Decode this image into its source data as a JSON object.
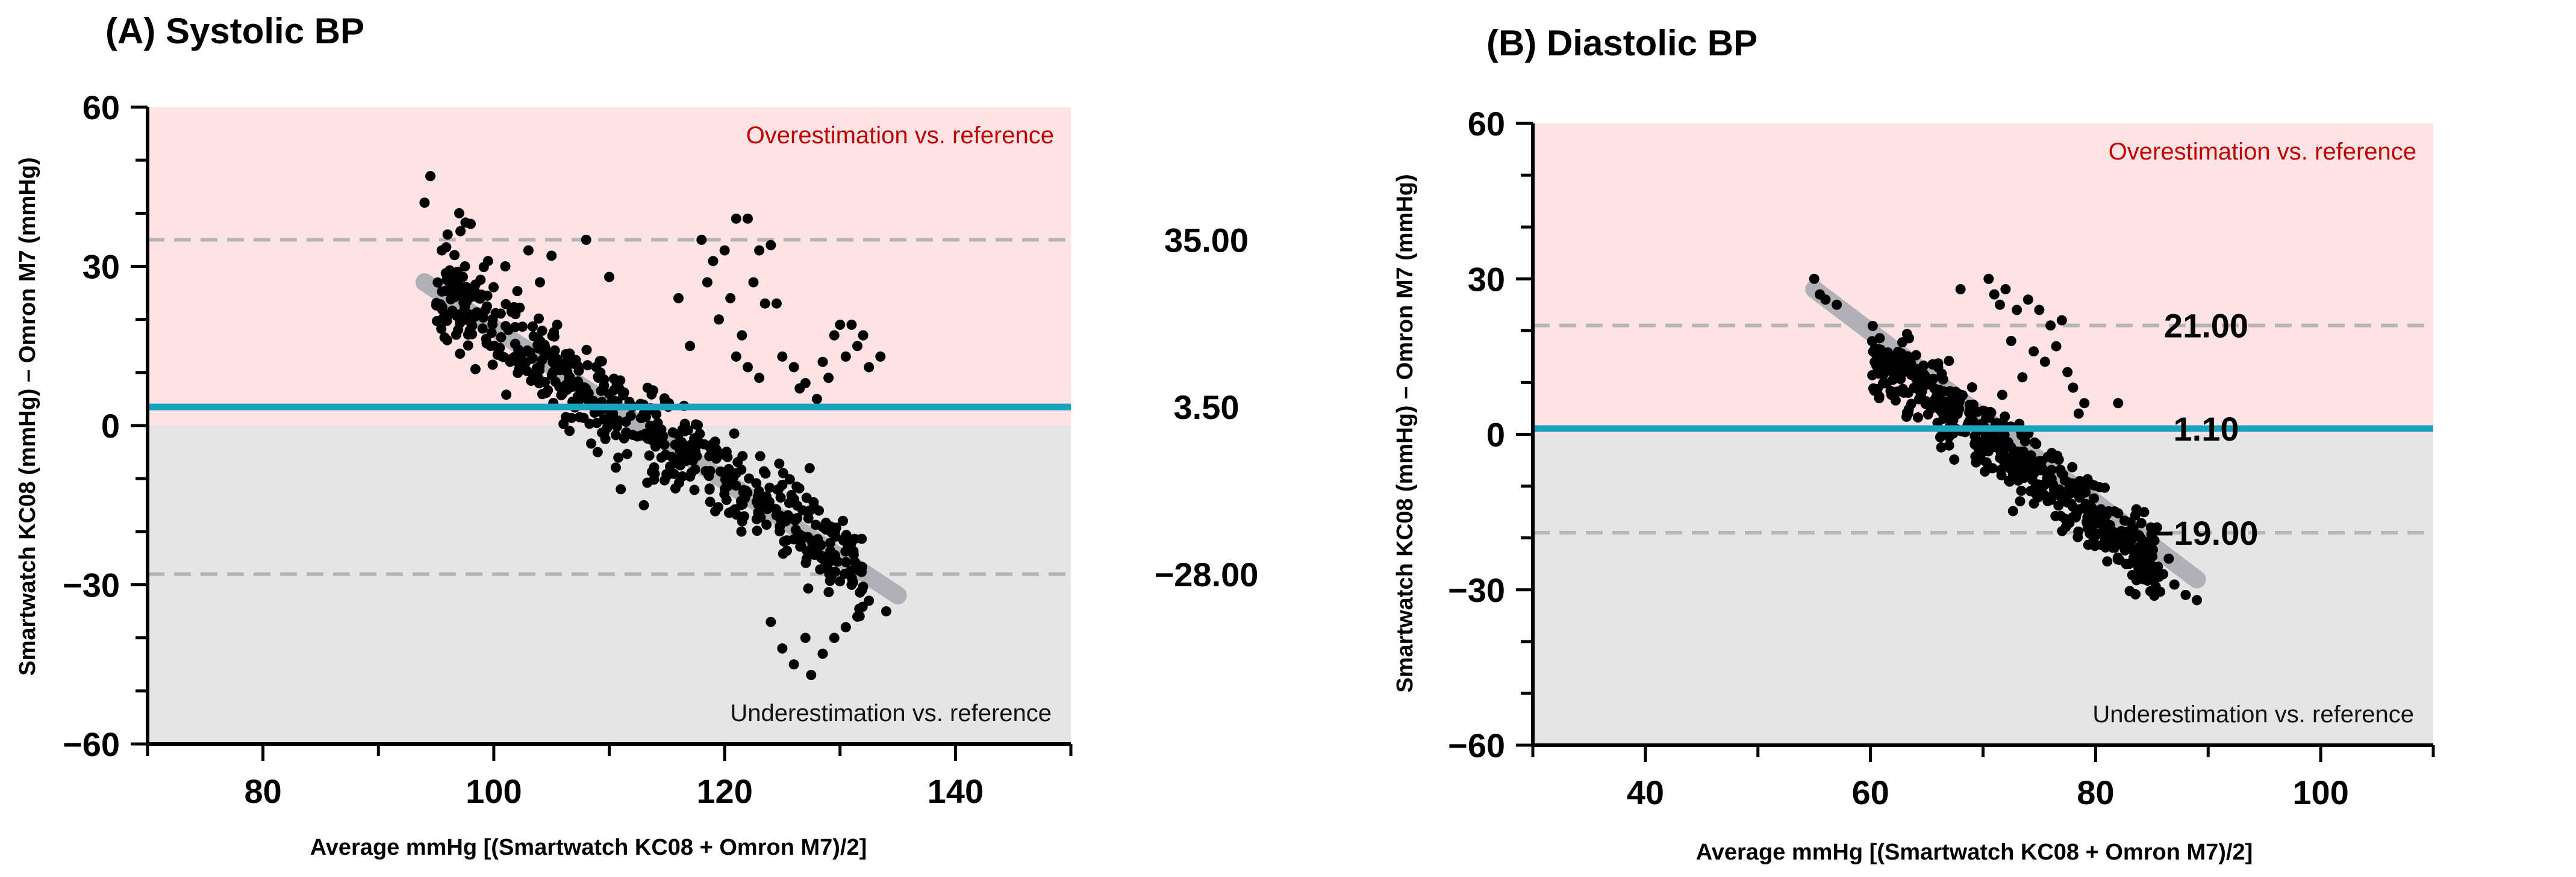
{
  "colors": {
    "over_region": "#fde3e3",
    "under_region": "#e5e5e5",
    "bias_line": "#1aa3bd",
    "loa_line": "#b5b5b5",
    "regression_line": "#b0b0b6",
    "points": "#000000",
    "over_text": "#c00000",
    "under_text": "#111111"
  },
  "chart_data": [
    {
      "type": "scatter",
      "title": "(A) Systolic BP",
      "xlabel": "Average mmHg [(Smartwatch KC08 +  Omron M7)/2]",
      "ylabel": "Smartwatch KC08 (mmHg) – Omron M7 (mmHg)",
      "xlim": [
        70,
        150
      ],
      "ylim": [
        -60,
        60
      ],
      "xticks": [
        80,
        100,
        120,
        140
      ],
      "xtick_labels": [
        "80",
        "100",
        "120",
        "140"
      ],
      "x_minor_step": 10,
      "yticks": [
        -60,
        -30,
        0,
        30,
        60
      ],
      "ytick_labels": [
        "−60",
        "−30",
        "0",
        "30",
        "60"
      ],
      "y_minor_step": 10,
      "bias": 3.5,
      "upper_loa": 35.0,
      "lower_loa": -28.0,
      "bias_label": "3.50",
      "upper_loa_label": "35.00",
      "lower_loa_label": "−28.00",
      "over_label": "Overestimation vs. reference",
      "under_label": "Underestimation vs. reference",
      "regression": {
        "x": [
          94,
          135
        ],
        "y": [
          27,
          -32
        ]
      },
      "cloud": {
        "x_range": [
          95,
          132
        ],
        "slope": -1.44,
        "anchor_x": 113,
        "anchor_y": 0,
        "spread_y": 4.5,
        "seed": 11,
        "n": 560
      },
      "points": [
        {
          "x": 94.5,
          "y": 47
        },
        {
          "x": 94.0,
          "y": 42
        },
        {
          "x": 97.0,
          "y": 40
        },
        {
          "x": 98.0,
          "y": 38
        },
        {
          "x": 96.0,
          "y": 36
        },
        {
          "x": 95.5,
          "y": 33
        },
        {
          "x": 97.5,
          "y": 30
        },
        {
          "x": 99.5,
          "y": 31
        },
        {
          "x": 101.0,
          "y": 30
        },
        {
          "x": 103.0,
          "y": 33
        },
        {
          "x": 105.0,
          "y": 32
        },
        {
          "x": 108.0,
          "y": 35
        },
        {
          "x": 110.0,
          "y": 28
        },
        {
          "x": 104.0,
          "y": 27
        },
        {
          "x": 118.0,
          "y": 35
        },
        {
          "x": 119.0,
          "y": 31
        },
        {
          "x": 120.0,
          "y": 33
        },
        {
          "x": 121.0,
          "y": 39
        },
        {
          "x": 122.0,
          "y": 39
        },
        {
          "x": 123.0,
          "y": 33
        },
        {
          "x": 124.0,
          "y": 34
        },
        {
          "x": 122.5,
          "y": 27
        },
        {
          "x": 120.5,
          "y": 24
        },
        {
          "x": 118.5,
          "y": 27
        },
        {
          "x": 123.5,
          "y": 23
        },
        {
          "x": 124.5,
          "y": 23
        },
        {
          "x": 119.5,
          "y": 20
        },
        {
          "x": 121.5,
          "y": 17
        },
        {
          "x": 116.0,
          "y": 24
        },
        {
          "x": 125.0,
          "y": 13
        },
        {
          "x": 126.0,
          "y": 11
        },
        {
          "x": 127.0,
          "y": 8
        },
        {
          "x": 128.0,
          "y": 5
        },
        {
          "x": 128.5,
          "y": 12
        },
        {
          "x": 129.5,
          "y": 17
        },
        {
          "x": 130.0,
          "y": 19
        },
        {
          "x": 131.0,
          "y": 19
        },
        {
          "x": 131.5,
          "y": 15
        },
        {
          "x": 130.5,
          "y": 13
        },
        {
          "x": 132.0,
          "y": 17
        },
        {
          "x": 133.5,
          "y": 13
        },
        {
          "x": 132.5,
          "y": 11
        },
        {
          "x": 129.0,
          "y": 9
        },
        {
          "x": 126.5,
          "y": 7
        },
        {
          "x": 121.0,
          "y": 13
        },
        {
          "x": 122.0,
          "y": 11
        },
        {
          "x": 117.0,
          "y": 15
        },
        {
          "x": 123.0,
          "y": 9
        },
        {
          "x": 125.0,
          "y": -42
        },
        {
          "x": 126.0,
          "y": -45
        },
        {
          "x": 127.5,
          "y": -47
        },
        {
          "x": 128.5,
          "y": -43
        },
        {
          "x": 129.5,
          "y": -40
        },
        {
          "x": 130.5,
          "y": -38
        },
        {
          "x": 131.5,
          "y": -36
        },
        {
          "x": 132.5,
          "y": -33
        },
        {
          "x": 134.0,
          "y": -35
        },
        {
          "x": 131.0,
          "y": -30
        },
        {
          "x": 127.0,
          "y": -40
        },
        {
          "x": 124.0,
          "y": -37
        },
        {
          "x": 113.0,
          "y": -15
        },
        {
          "x": 111.0,
          "y": -12
        },
        {
          "x": 109.0,
          "y": -5
        }
      ]
    },
    {
      "type": "scatter",
      "title": "(B) Diastolic BP",
      "xlabel": "Average mmHg [(Smartwatch KC08 +  Omron M7)/2]",
      "ylabel": "Smartwatch KC08 (mmHg) – Omron M7 (mmHg)",
      "xlim": [
        30,
        110
      ],
      "ylim": [
        -60,
        60
      ],
      "xticks": [
        40,
        60,
        80,
        100
      ],
      "xtick_labels": [
        "40",
        "60",
        "80",
        "100"
      ],
      "x_minor_step": 10,
      "yticks": [
        -60,
        -30,
        0,
        30,
        60
      ],
      "ytick_labels": [
        "−60",
        "−30",
        "0",
        "30",
        "60"
      ],
      "y_minor_step": 10,
      "bias": 1.1,
      "upper_loa": 21.0,
      "lower_loa": -19.0,
      "bias_label": "1.10",
      "upper_loa_label": "21.00",
      "lower_loa_label": "−19.00",
      "over_label": "Overestimation vs. reference",
      "under_label": "Underestimation vs. reference",
      "regression": {
        "x": [
          55,
          89
        ],
        "y": [
          28,
          -28
        ]
      },
      "cloud": {
        "x_range": [
          60,
          86
        ],
        "slope": -1.62,
        "anchor_x": 70,
        "anchor_y": 0,
        "spread_y": 3.5,
        "seed": 29,
        "n": 520
      },
      "points": [
        {
          "x": 55.0,
          "y": 30
        },
        {
          "x": 55.5,
          "y": 27
        },
        {
          "x": 57.0,
          "y": 25
        },
        {
          "x": 56.0,
          "y": 26
        },
        {
          "x": 68.0,
          "y": 28
        },
        {
          "x": 70.5,
          "y": 30
        },
        {
          "x": 71.0,
          "y": 27
        },
        {
          "x": 72.0,
          "y": 28
        },
        {
          "x": 71.5,
          "y": 25
        },
        {
          "x": 73.0,
          "y": 24
        },
        {
          "x": 74.0,
          "y": 26
        },
        {
          "x": 75.0,
          "y": 24
        },
        {
          "x": 76.0,
          "y": 21
        },
        {
          "x": 77.0,
          "y": 22
        },
        {
          "x": 76.5,
          "y": 17
        },
        {
          "x": 75.5,
          "y": 14
        },
        {
          "x": 77.5,
          "y": 12
        },
        {
          "x": 78.0,
          "y": 9
        },
        {
          "x": 79.0,
          "y": 6
        },
        {
          "x": 82.0,
          "y": 6
        },
        {
          "x": 78.5,
          "y": 4
        },
        {
          "x": 74.5,
          "y": 16
        },
        {
          "x": 73.5,
          "y": 11
        },
        {
          "x": 72.5,
          "y": 18
        },
        {
          "x": 84.0,
          "y": -26
        },
        {
          "x": 85.0,
          "y": -28
        },
        {
          "x": 86.0,
          "y": -27
        },
        {
          "x": 87.0,
          "y": -29
        },
        {
          "x": 88.0,
          "y": -31
        },
        {
          "x": 89.0,
          "y": -32
        },
        {
          "x": 84.5,
          "y": -22
        },
        {
          "x": 86.5,
          "y": -24
        },
        {
          "x": 83.0,
          "y": -25
        },
        {
          "x": 82.5,
          "y": -21
        }
      ]
    }
  ]
}
